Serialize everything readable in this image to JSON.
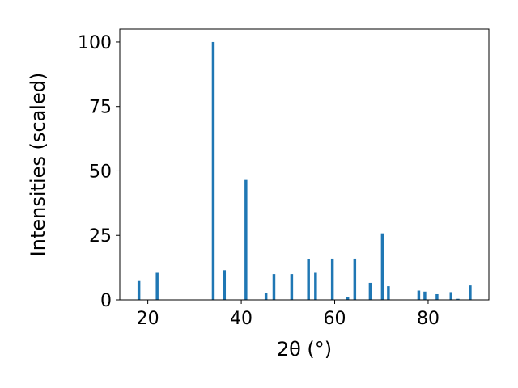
{
  "chart_data": {
    "type": "bar",
    "xlabel": "2θ (°)",
    "ylabel": "Intensities (scaled)",
    "xlim": [
      14,
      93
    ],
    "ylim": [
      0,
      105
    ],
    "xticks": [
      20,
      40,
      60,
      80
    ],
    "yticks": [
      0,
      25,
      50,
      75,
      100
    ],
    "grid": false,
    "bar_color": "#1f77b4",
    "bar_width": 0.6,
    "x": [
      18.1,
      22.0,
      34.0,
      36.4,
      41.0,
      45.3,
      47.0,
      50.8,
      54.4,
      55.9,
      59.5,
      62.8,
      64.3,
      67.6,
      70.2,
      71.5,
      78.0,
      79.3,
      81.9,
      84.9,
      86.4,
      89.0
    ],
    "values": [
      7.3,
      10.5,
      100,
      11.5,
      46.5,
      2.8,
      10.0,
      10.0,
      15.7,
      10.5,
      16.0,
      1.2,
      16.0,
      6.6,
      25.8,
      5.3,
      3.6,
      3.2,
      2.2,
      3.0,
      0.4,
      5.6
    ]
  }
}
